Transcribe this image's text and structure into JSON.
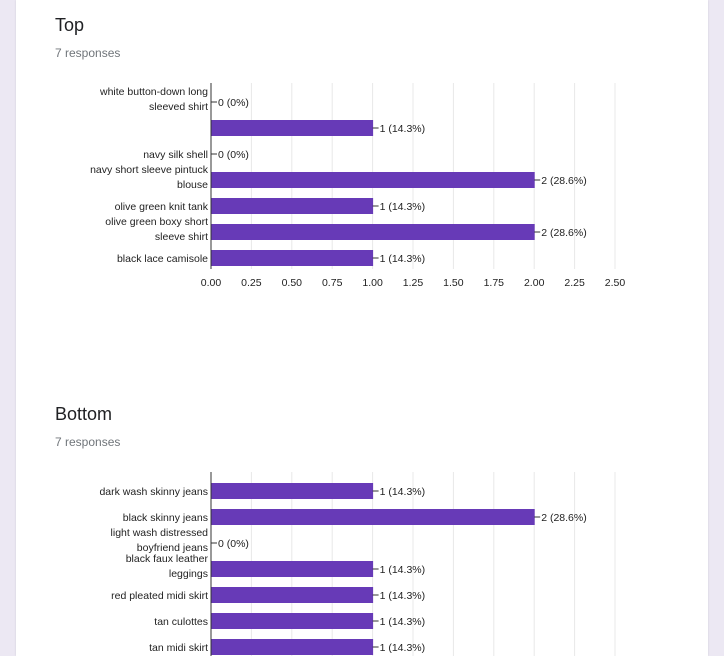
{
  "questions": [
    {
      "title": "Top",
      "responses": "7 responses"
    },
    {
      "title": "Bottom",
      "responses": "7 responses"
    }
  ],
  "colors": {
    "bar": "#673ab7",
    "grid": "#e8e8e8",
    "axis": "#333333",
    "text": "#222222"
  },
  "chart_data": [
    {
      "type": "bar",
      "orientation": "horizontal",
      "title": "Top",
      "categories": [
        "white button-down long sleeved shirt",
        "",
        "navy silk shell",
        "navy short sleeve pintuck blouse",
        "olive green knit tank",
        "olive green boxy short sleeve shirt",
        "black lace camisole"
      ],
      "values": [
        0,
        1,
        0,
        2,
        1,
        2,
        1
      ],
      "data_labels": [
        "0 (0%)",
        "1 (14.3%)",
        "0 (0%)",
        "2 (28.6%)",
        "1 (14.3%)",
        "2 (28.6%)",
        "1 (14.3%)"
      ],
      "xlim": [
        0,
        2.5
      ],
      "xticks": [
        "0.00",
        "0.25",
        "0.50",
        "0.75",
        "1.00",
        "1.25",
        "1.50",
        "1.75",
        "2.00",
        "2.25",
        "2.50"
      ],
      "grid": true
    },
    {
      "type": "bar",
      "orientation": "horizontal",
      "title": "Bottom",
      "categories": [
        "dark wash skinny jeans",
        "black skinny jeans",
        "light wash distressed boyfriend jeans",
        "black faux leather leggings",
        "red pleated midi skirt",
        "tan culottes",
        "tan midi skirt"
      ],
      "values": [
        1,
        2,
        0,
        1,
        1,
        1,
        1
      ],
      "data_labels": [
        "1 (14.3%)",
        "2 (28.6%)",
        "0 (0%)",
        "1 (14.3%)",
        "1 (14.3%)",
        "1 (14.3%)",
        "1 (14.3%)"
      ],
      "xlim": [
        0,
        2.5
      ],
      "grid": true
    }
  ]
}
